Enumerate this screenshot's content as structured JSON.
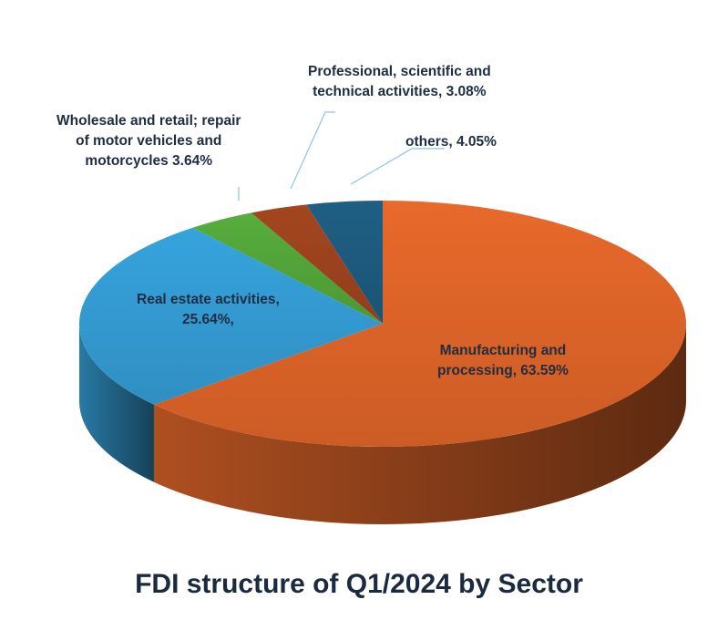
{
  "chart_data": {
    "type": "pie",
    "style": "3d",
    "title": "FDI structure of Q1/2024 by Sector",
    "start_angle": "12 o'clock, clockwise",
    "slices": [
      {
        "name": "Manufacturing and processing",
        "value": 63.59,
        "label_lines": [
          "Manufacturing and",
          "processing, 63.59%"
        ],
        "color": "#e8692a"
      },
      {
        "name": "Real estate activities",
        "value": 25.64,
        "label_lines": [
          "Real estate activities,",
          "25.64%,"
        ],
        "color": "#36a3dd"
      },
      {
        "name": "Wholesale and retail; repair of motor vehicles and motorcycles",
        "value": 3.64,
        "label_lines": [
          "Wholesale and retail; repair",
          "of motor vehicles and",
          "motorcycles  3.64%"
        ],
        "color": "#56ad3c"
      },
      {
        "name": "Professional, scientific and technical activities",
        "value": 3.08,
        "label_lines": [
          "Professional, scientific and",
          "technical activities, 3.08%"
        ],
        "color": "#a4461f"
      },
      {
        "name": "others",
        "value": 4.05,
        "label_lines": [
          "others, 4.05%"
        ],
        "color": "#1f5f84"
      }
    ]
  }
}
